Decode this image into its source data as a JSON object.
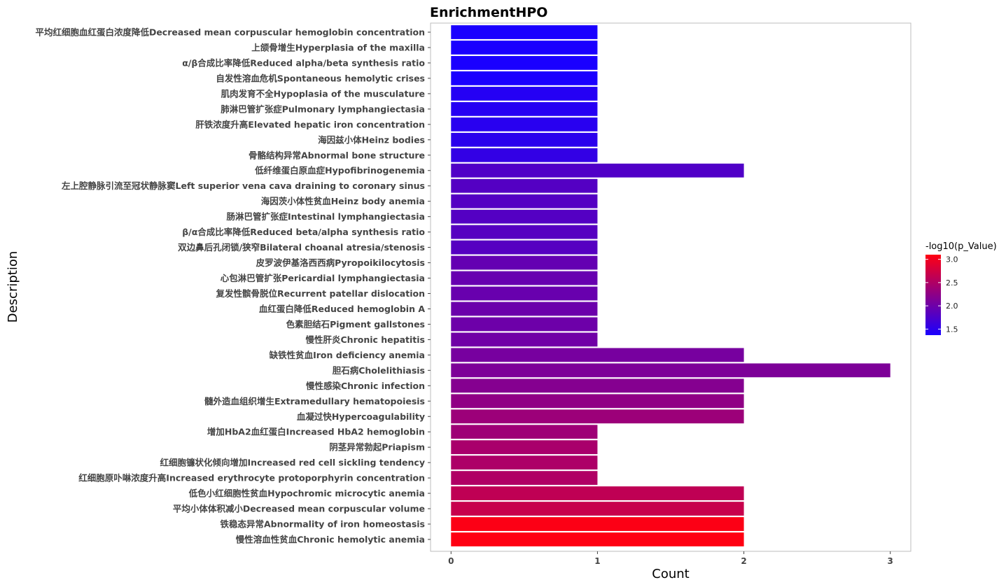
{
  "chart_data": {
    "type": "bar",
    "orientation": "horizontal",
    "title": "EnrichmentHPO",
    "xlabel": "Count",
    "ylabel": "Description",
    "xlim": [
      -0.14,
      3.14
    ],
    "xticks": [
      0,
      1,
      2,
      3
    ],
    "grid": false,
    "legend": {
      "title": "-log10(p_Value)",
      "placement": "right",
      "range": [
        1.37,
        3.1
      ],
      "ticks": [
        "1.5",
        "2.0",
        "2.5",
        "3.0"
      ],
      "tick_values": [
        1.5,
        2.0,
        2.5,
        3.0
      ],
      "color_low": "#1a00ff",
      "color_high": "#ff0012"
    },
    "categories": [
      "平均红细胞血红蛋白浓度降低Decreased mean corpuscular hemoglobin concentration",
      "上颌骨增生Hyperplasia of the maxilla",
      "α/β合成比率降低Reduced alpha/beta synthesis ratio",
      "自发性溶血危机Spontaneous hemolytic crises",
      "肌肉发育不全Hypoplasia of the musculature",
      "肺淋巴管扩张症Pulmonary lymphangiectasia",
      "肝铁浓度升高Elevated hepatic iron concentration",
      "海因兹小体Heinz bodies",
      "骨骼结构异常Abnormal bone structure",
      "低纤维蛋白原血症Hypofibrinogenemia",
      "左上腔静脉引流至冠状静脉窦Left superior vena cava draining to coronary sinus",
      "海因茨小体性贫血Heinz body anemia",
      "肠淋巴管扩张症Intestinal lymphangiectasia",
      "β/α合成比率降低Reduced beta/alpha synthesis ratio",
      "双边鼻后孔闭锁/狭窄Bilateral choanal atresia/stenosis",
      "皮罗波伊基洛西西病Pyropoikilocytosis",
      "心包淋巴管扩张Pericardial lymphangiectasia",
      "复发性髌骨脱位Recurrent patellar dislocation",
      "血红蛋白降低Reduced hemoglobin A",
      "色素胆结石Pigment gallstones",
      "慢性肝炎Chronic hepatitis",
      "缺铁性贫血Iron deficiency anemia",
      "胆石病Cholelithiasis",
      "慢性感染Chronic infection",
      "髓外造血组织增生Extramedullary hematopoiesis",
      "血凝过快Hypercoagulability",
      "增加HbA2血红蛋白Increased HbA2 hemoglobin",
      "阴茎异常勃起Priapism",
      "红细胞镰状化倾向增加Increased red cell sickling tendency",
      "红细胞原卟啉浓度升高Increased erythrocyte protoporphyrin concentration",
      "低色小红细胞性贫血Hypochromic microcytic anemia",
      "平均小体体积减小Decreased mean corpuscular volume",
      "铁稳态异常Abnormality of iron homeostasis",
      "慢性溶血性贫血Chronic hemolytic anemia"
    ],
    "values": [
      1,
      1,
      1,
      1,
      1,
      1,
      1,
      1,
      1,
      2,
      1,
      1,
      1,
      1,
      1,
      1,
      1,
      1,
      1,
      1,
      1,
      2,
      3,
      2,
      2,
      2,
      1,
      1,
      1,
      1,
      2,
      2,
      2,
      2
    ],
    "neg_log10_p": [
      1.37,
      1.37,
      1.37,
      1.37,
      1.45,
      1.46,
      1.48,
      1.5,
      1.56,
      1.78,
      1.81,
      1.81,
      1.81,
      1.82,
      1.82,
      1.93,
      1.95,
      1.96,
      1.98,
      2.0,
      2.02,
      2.07,
      2.12,
      2.18,
      2.26,
      2.35,
      2.37,
      2.45,
      2.48,
      2.5,
      2.62,
      2.68,
      3.08,
      3.1
    ]
  }
}
